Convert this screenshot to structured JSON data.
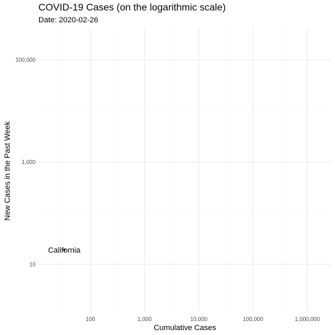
{
  "chart_data": {
    "type": "scatter",
    "title": "COVID-19 Cases (on the logarithmic scale)",
    "subtitle": "Date: 2020-02-26",
    "xlabel": "Cumulative Cases",
    "ylabel": "New Cases in the Past Week",
    "x_scale": "log",
    "y_scale": "log",
    "xlim": [
      11,
      2800000
    ],
    "ylim": [
      1.2,
      420000
    ],
    "x_ticks": [
      {
        "value": 100,
        "label": "100"
      },
      {
        "value": 1000,
        "label": "1,000"
      },
      {
        "value": 10000,
        "label": "10,000"
      },
      {
        "value": 100000,
        "label": "100,000"
      },
      {
        "value": 1000000,
        "label": "1,000,000"
      }
    ],
    "y_ticks": [
      {
        "value": 10,
        "label": "10"
      },
      {
        "value": 1000,
        "label": "1,000"
      },
      {
        "value": 100000,
        "label": "100,000"
      }
    ],
    "grid": true,
    "points": [
      {
        "label": "California",
        "x": 33,
        "y": 19
      }
    ],
    "colors": {
      "panel_grid_major": "#ebebeb",
      "panel_grid_minor": "#f5f5f5",
      "point": "#000000"
    }
  }
}
